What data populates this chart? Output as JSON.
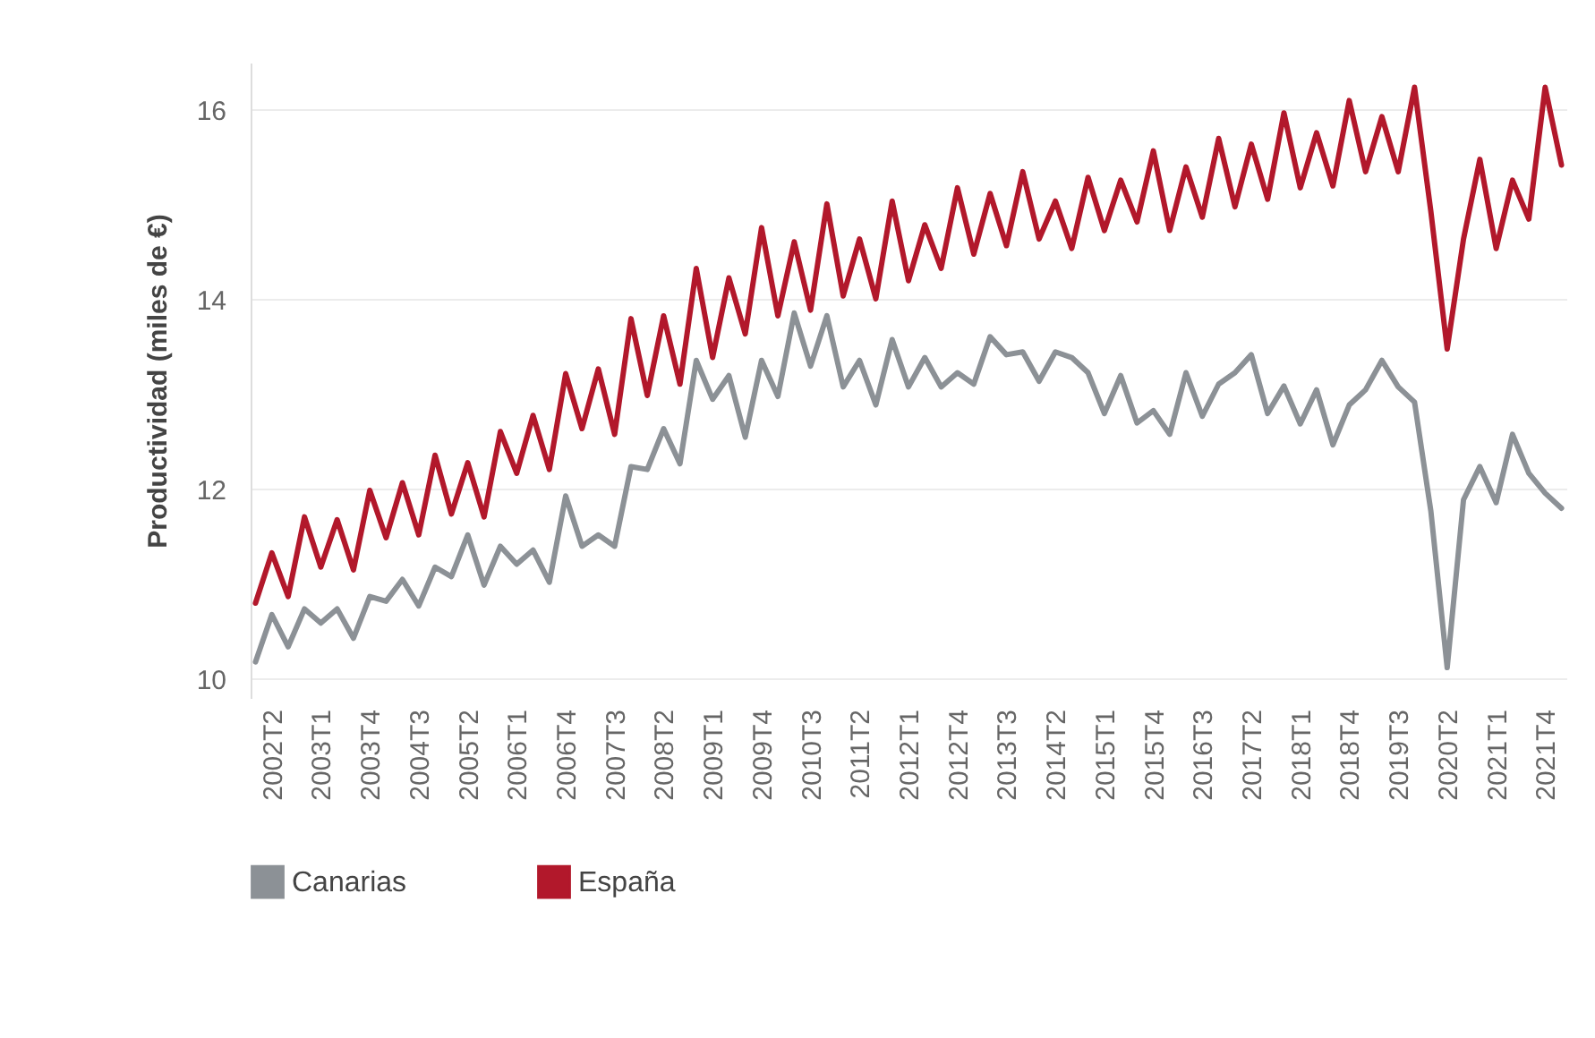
{
  "chart_data": {
    "type": "line",
    "ylabel": "Productividad (miles de €)",
    "categories": [
      null,
      "2002T2",
      null,
      null,
      "2003T1",
      null,
      null,
      "2003T4",
      null,
      null,
      "2004T3",
      null,
      null,
      "2005T2",
      null,
      null,
      "2006T1",
      null,
      null,
      "2006T4",
      null,
      null,
      "2007T3",
      null,
      null,
      "2008T2",
      null,
      null,
      "2009T1",
      null,
      null,
      "2009T4",
      null,
      null,
      "2010T3",
      null,
      null,
      "2011T2",
      null,
      null,
      "2012T1",
      null,
      null,
      "2012T4",
      null,
      null,
      "2013T3",
      null,
      null,
      "2014T2",
      null,
      null,
      "2015T1",
      null,
      null,
      "2015T4",
      null,
      null,
      "2016T3",
      null,
      null,
      "2017T2",
      null,
      null,
      "2018T1",
      null,
      null,
      "2018T4",
      null,
      null,
      "2019T3",
      null,
      null,
      "2020T2",
      null,
      null,
      "2021T1",
      null,
      null,
      "2021T4",
      null
    ],
    "series": [
      {
        "name": "Canarias",
        "color": "#8c9196",
        "values": [
          10.18,
          10.68,
          10.34,
          10.74,
          10.59,
          10.74,
          10.43,
          10.87,
          10.82,
          11.05,
          10.77,
          11.18,
          11.08,
          11.52,
          10.99,
          11.4,
          11.21,
          11.36,
          11.02,
          11.93,
          11.4,
          11.52,
          11.4,
          12.24,
          12.21,
          12.64,
          12.27,
          13.36,
          12.95,
          13.2,
          12.55,
          13.36,
          12.98,
          13.86,
          13.3,
          13.83,
          13.08,
          13.36,
          12.89,
          13.58,
          13.08,
          13.39,
          13.08,
          13.23,
          13.11,
          13.61,
          13.42,
          13.45,
          13.14,
          13.45,
          13.39,
          13.23,
          12.8,
          13.2,
          12.7,
          12.83,
          12.58,
          13.23,
          12.77,
          13.11,
          13.23,
          13.42,
          12.8,
          13.09,
          12.69,
          13.05,
          12.47,
          12.89,
          13.05,
          13.36,
          13.08,
          12.92,
          11.77,
          10.12,
          11.89,
          12.24,
          11.86,
          12.58,
          12.17,
          11.96,
          11.8
        ]
      },
      {
        "name": "España",
        "color": "#b2182b",
        "values": [
          10.8,
          11.33,
          10.87,
          11.71,
          11.18,
          11.68,
          11.15,
          11.99,
          11.49,
          12.07,
          11.52,
          12.36,
          11.74,
          12.28,
          11.71,
          12.61,
          12.17,
          12.78,
          12.21,
          13.22,
          12.64,
          13.27,
          12.58,
          13.8,
          12.99,
          13.83,
          13.11,
          14.33,
          13.39,
          14.23,
          13.64,
          14.76,
          13.83,
          14.61,
          13.89,
          15.01,
          14.04,
          14.64,
          14.01,
          15.04,
          14.2,
          14.79,
          14.33,
          15.18,
          14.48,
          15.12,
          14.57,
          15.35,
          14.64,
          15.04,
          14.54,
          15.29,
          14.73,
          15.26,
          14.82,
          15.57,
          14.73,
          15.4,
          14.87,
          15.7,
          14.98,
          15.64,
          15.06,
          15.97,
          15.18,
          15.76,
          15.2,
          16.1,
          15.35,
          15.93,
          15.35,
          16.24,
          14.93,
          13.48,
          14.64,
          15.48,
          14.54,
          15.26,
          14.85,
          16.24,
          15.42
        ]
      }
    ],
    "ylim": [
      9.8,
      16.5
    ],
    "yticks": [
      10,
      12,
      14,
      16
    ],
    "grid": "y",
    "legend": "bottom",
    "marker": "none",
    "line_style": "solid"
  }
}
